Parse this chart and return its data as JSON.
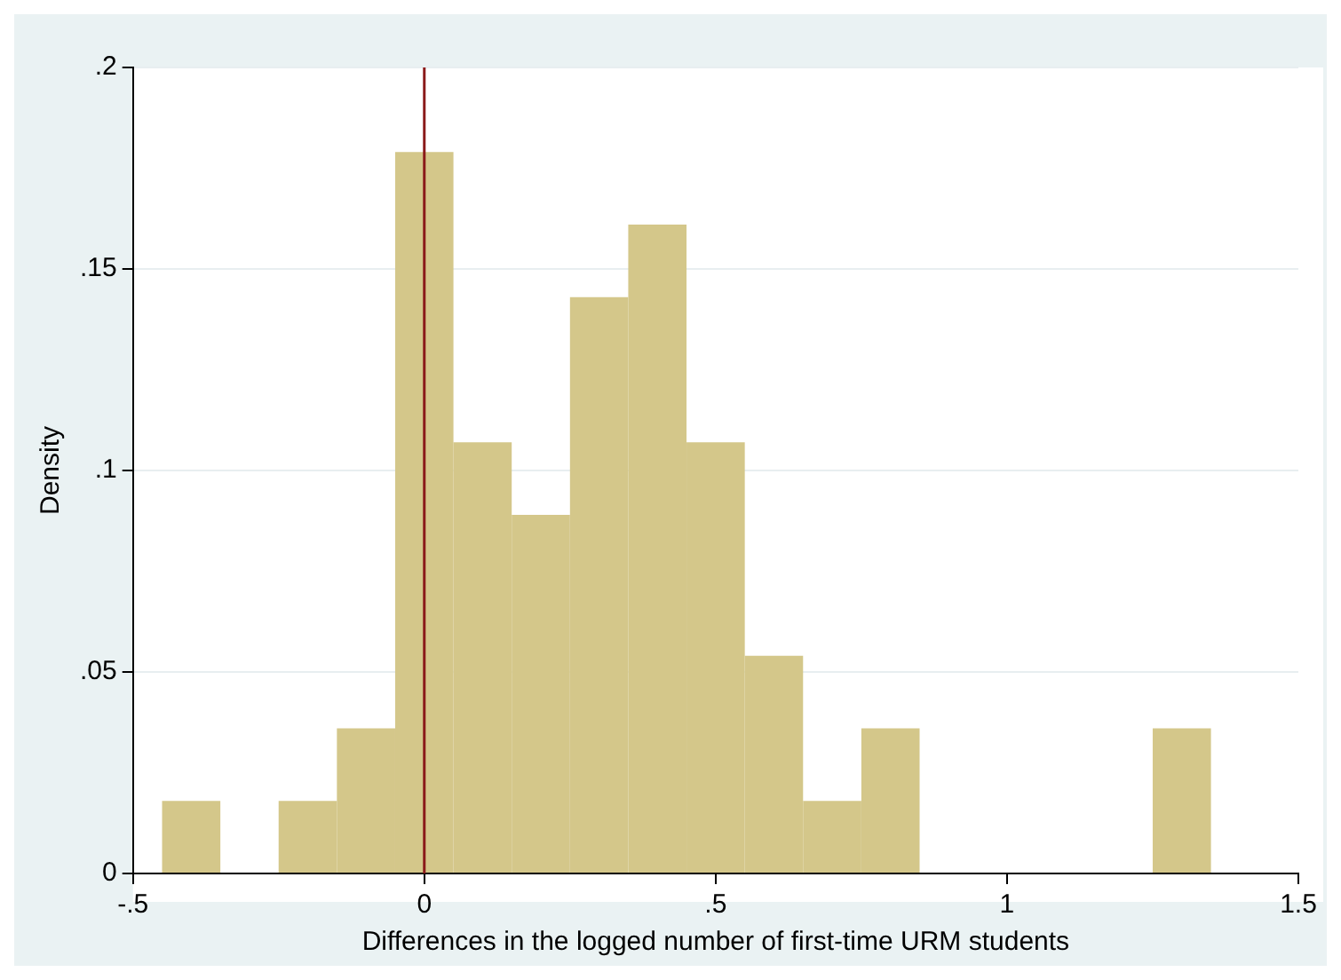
{
  "chart_data": {
    "type": "histogram",
    "xlabel": "Differences in the logged number of first-time URM students",
    "ylabel": "Density",
    "bins": [
      -0.45,
      -0.35,
      -0.25,
      -0.15,
      -0.05,
      0.05,
      0.15,
      0.25,
      0.35,
      0.45,
      0.55,
      0.65,
      0.75,
      0.85,
      0.95,
      1.05,
      1.15,
      1.25,
      1.35
    ],
    "values": [
      0.018,
      0,
      0.018,
      0.036,
      0.179,
      0.107,
      0.089,
      0.143,
      0.161,
      0.107,
      0.054,
      0.018,
      0.036,
      0,
      0,
      0,
      0,
      0.036
    ],
    "color": "#d4c78a",
    "xlim": [
      -0.5,
      1.5
    ],
    "xticks": [
      {
        "value": -0.5,
        "label": "-.5"
      },
      0,
      {
        "value": 0.5,
        "label": ".5"
      },
      1,
      1.5
    ],
    "ylim": [
      0,
      0.2
    ],
    "yticks": [
      0,
      {
        "value": 0.05,
        "label": ".05"
      },
      {
        "value": 0.1,
        "label": ".1"
      },
      {
        "value": 0.15,
        "label": ".15"
      },
      {
        "value": 0.2,
        "label": ".2"
      }
    ],
    "grid": "y",
    "ref_lines": [
      {
        "axis": "x",
        "value": 0,
        "color": "#8b1a1a"
      }
    ]
  }
}
